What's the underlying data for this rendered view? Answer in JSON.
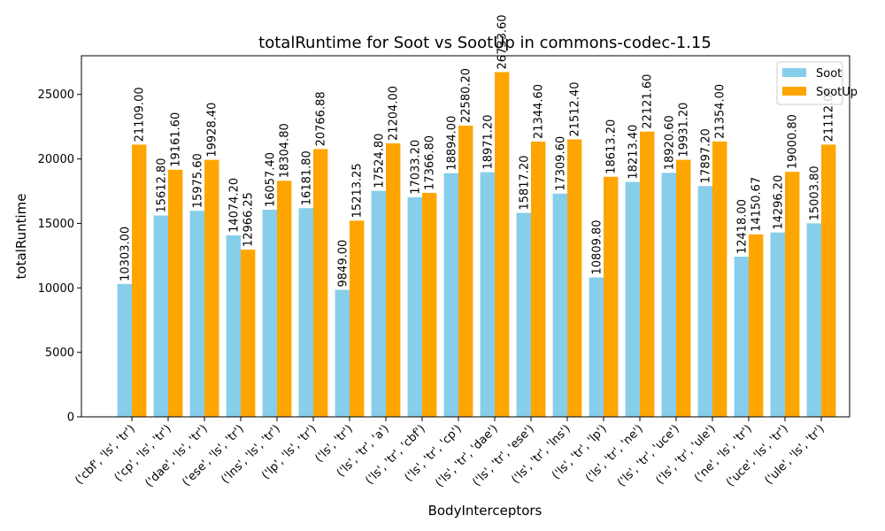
{
  "chart_data": {
    "type": "bar",
    "title": "totalRuntime for Soot vs SootUp in commons-codec-1.15",
    "xlabel": "BodyInterceptors",
    "ylabel": "totalRuntime",
    "ylim": [
      0,
      28000
    ],
    "yticks": [
      0,
      5000,
      10000,
      15000,
      20000,
      25000
    ],
    "legend_position": "top-right",
    "categories": [
      "('cbf', 'ls', 'tr')",
      "('cp', 'ls', 'tr')",
      "('dae', 'ls', 'tr')",
      "('ese', 'ls', 'tr')",
      "('lns', 'ls', 'tr')",
      "('lp', 'ls', 'tr')",
      "('ls', 'tr')",
      "('ls', 'tr', 'a')",
      "('ls', 'tr', 'cbf')",
      "('ls', 'tr', 'cp')",
      "('ls', 'tr', 'dae')",
      "('ls', 'tr', 'ese')",
      "('ls', 'tr', 'lns')",
      "('ls', 'tr', 'lp')",
      "('ls', 'tr', 'ne')",
      "('ls', 'tr', 'uce')",
      "('ls', 'tr', 'ule')",
      "('ne', 'ls', 'tr')",
      "('uce', 'ls', 'tr')",
      "('ule', 'ls', 'tr')"
    ],
    "series": [
      {
        "name": "Soot",
        "color": "#87ceeb",
        "values": [
          10303.0,
          15612.8,
          15975.6,
          14074.2,
          16057.4,
          16181.8,
          9849.0,
          17524.8,
          17033.2,
          18894.0,
          18971.2,
          15817.2,
          17309.6,
          10809.8,
          18213.4,
          18920.6,
          17897.2,
          12418.0,
          14296.2,
          15003.8
        ],
        "labels": [
          "10303.00",
          "15612.80",
          "15975.60",
          "14074.20",
          "16057.40",
          "16181.80",
          "9849.00",
          "17524.80",
          "17033.20",
          "18894.00",
          "18971.20",
          "15817.20",
          "17309.60",
          "10809.80",
          "18213.40",
          "18920.60",
          "17897.20",
          "12418.00",
          "14296.20",
          "15003.80"
        ]
      },
      {
        "name": "SootUp",
        "color": "#ffa500",
        "values": [
          21109.0,
          19161.6,
          19928.4,
          12966.25,
          18304.8,
          20766.88,
          15213.25,
          21204.0,
          17366.8,
          22580.2,
          26733.6,
          21344.6,
          21512.4,
          18613.2,
          22121.6,
          19931.2,
          21354.0,
          14150.67,
          19000.8,
          21112.0
        ],
        "labels": [
          "21109.00",
          "19161.60",
          "19928.40",
          "12966.25",
          "18304.80",
          "20766.88",
          "15213.25",
          "21204.00",
          "17366.80",
          "22580.20",
          "26733.60",
          "21344.60",
          "21512.40",
          "18613.20",
          "22121.60",
          "19931.20",
          "21354.00",
          "14150.67",
          "19000.80",
          "21112.00"
        ]
      }
    ]
  }
}
